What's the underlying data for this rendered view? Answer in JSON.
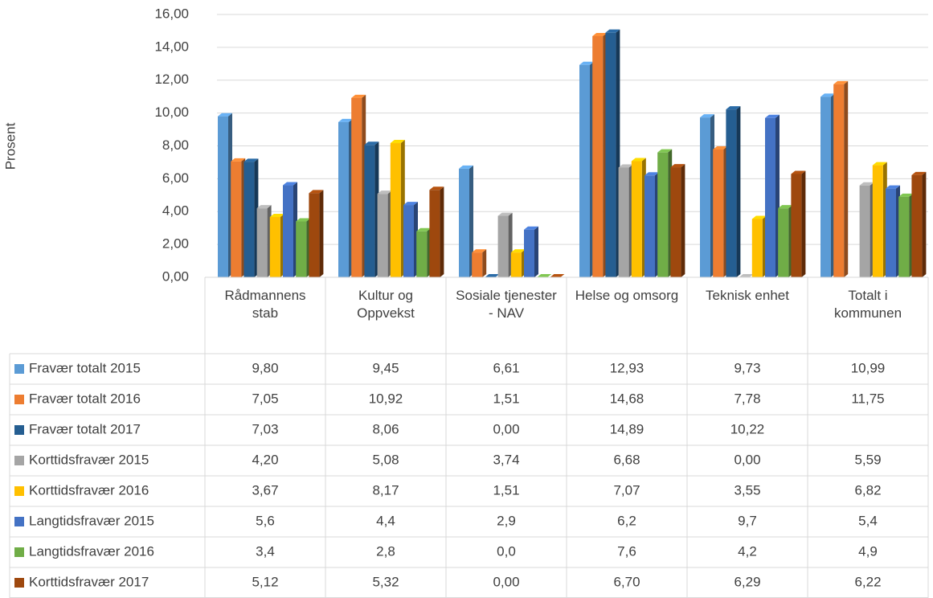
{
  "chart_data": {
    "type": "bar3d",
    "y_axis_label": "Prosent",
    "categories": [
      "Rådmannens stab",
      "Kultur og Oppvekst",
      "Sosiale tjenester - NAV",
      "Helse og omsorg",
      "Teknisk enhet",
      "Totalt i kommunen"
    ],
    "ylim": [
      0,
      16
    ],
    "yticks": [
      {
        "value": 0,
        "label": "0,00"
      },
      {
        "value": 2,
        "label": "2,00"
      },
      {
        "value": 4,
        "label": "4,00"
      },
      {
        "value": 6,
        "label": "6,00"
      },
      {
        "value": 8,
        "label": "8,00"
      },
      {
        "value": 10,
        "label": "10,00"
      },
      {
        "value": 12,
        "label": "12,00"
      },
      {
        "value": 14,
        "label": "14,00"
      },
      {
        "value": 16,
        "label": "16,00"
      }
    ],
    "grid": true,
    "series": [
      {
        "name": "Fravær totalt 2015",
        "color": "#5b9bd5",
        "values": [
          9.8,
          9.45,
          6.61,
          12.93,
          9.73,
          10.99
        ],
        "value_labels": [
          "9,80",
          "9,45",
          "6,61",
          "12,93",
          "9,73",
          "10,99"
        ]
      },
      {
        "name": "Fravær totalt 2016",
        "color": "#ed7d31",
        "values": [
          7.05,
          10.92,
          1.51,
          14.68,
          7.78,
          11.75
        ],
        "value_labels": [
          "7,05",
          "10,92",
          "1,51",
          "14,68",
          "7,78",
          "11,75"
        ]
      },
      {
        "name": "Fravær totalt 2017",
        "color": "#255e91",
        "values": [
          7.03,
          8.06,
          0.0,
          14.89,
          10.22,
          null
        ],
        "value_labels": [
          "7,03",
          "8,06",
          "0,00",
          "14,89",
          "10,22",
          null
        ]
      },
      {
        "name": "Korttidsfravær 2015",
        "color": "#a5a5a5",
        "values": [
          4.2,
          5.08,
          3.74,
          6.68,
          0.0,
          5.59
        ],
        "value_labels": [
          "4,20",
          "5,08",
          "3,74",
          "6,68",
          "0,00",
          "5,59"
        ]
      },
      {
        "name": "Korttidsfravær 2016",
        "color": "#ffc000",
        "values": [
          3.67,
          8.17,
          1.51,
          7.07,
          3.55,
          6.82
        ],
        "value_labels": [
          "3,67",
          "8,17",
          "1,51",
          "7,07",
          "3,55",
          "6,82"
        ]
      },
      {
        "name": "Langtidsfravær 2015",
        "color": "#4472c4",
        "values": [
          5.6,
          4.4,
          2.9,
          6.2,
          9.7,
          5.4
        ],
        "value_labels": [
          "5,6",
          "4,4",
          "2,9",
          "6,2",
          "9,7",
          "5,4"
        ]
      },
      {
        "name": "Langtidsfravær 2016",
        "color": "#70ad47",
        "values": [
          3.4,
          2.8,
          0.0,
          7.6,
          4.2,
          4.9
        ],
        "value_labels": [
          "3,4",
          "2,8",
          "0,0",
          "7,6",
          "4,2",
          "4,9"
        ]
      },
      {
        "name": "Korttidsfravær 2017",
        "color": "#9e480e",
        "values": [
          5.12,
          5.32,
          0.0,
          6.7,
          6.29,
          6.22
        ],
        "value_labels": [
          "5,12",
          "5,32",
          "0,00",
          "6,70",
          "6,29",
          "6,22"
        ]
      }
    ]
  }
}
